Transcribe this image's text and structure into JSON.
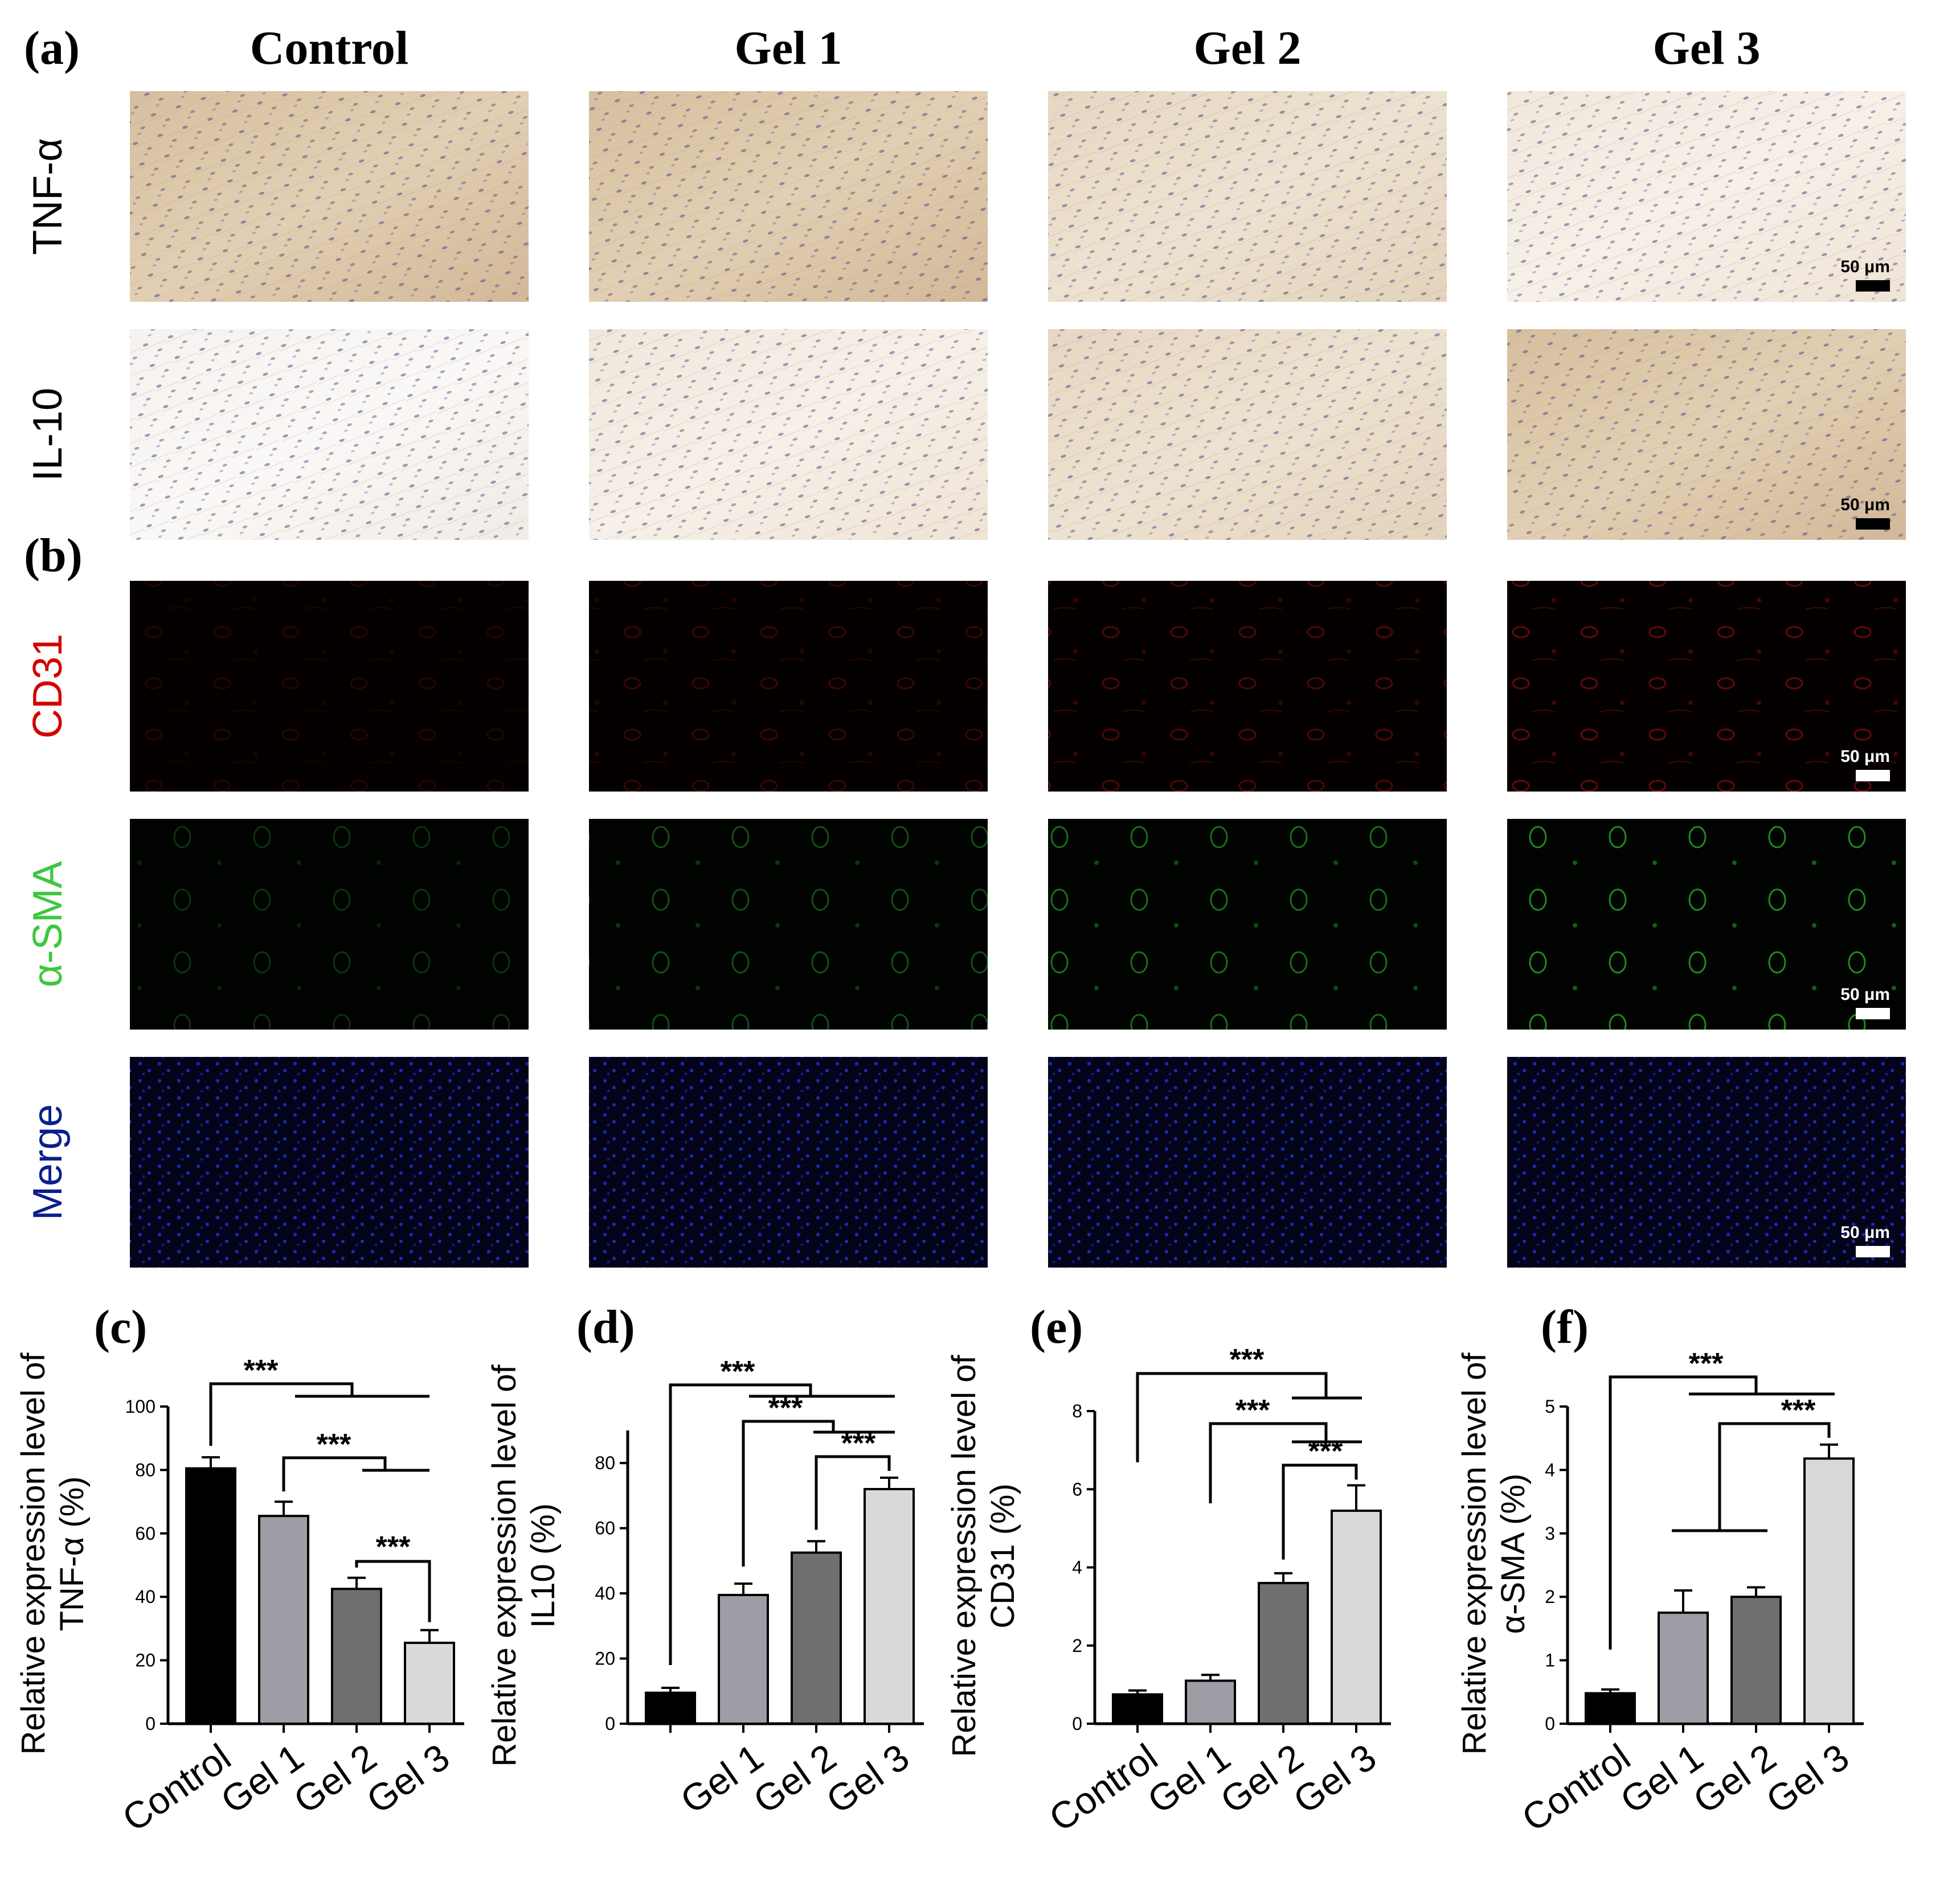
{
  "figure": {
    "panel_a": "(a)",
    "panel_b": "(b)",
    "columns": [
      "Control",
      "Gel 1",
      "Gel 2",
      "Gel 3"
    ],
    "rows": [
      {
        "label": "TNF-α",
        "color": "#000000",
        "tone": "ihc",
        "scale": "50 μm"
      },
      {
        "label": "IL-10",
        "color": "#000000",
        "tone": "ihc",
        "scale": "50 μm"
      },
      {
        "label": "CD31",
        "color": "#d40000",
        "tone": "red",
        "scale": "50 μm"
      },
      {
        "label": "α-SMA",
        "color": "#3cc83c",
        "tone": "green",
        "scale": "50 μm"
      },
      {
        "label": "Merge",
        "color": "#0a1f8c",
        "tone": "merge",
        "scale": "50 μm"
      }
    ]
  },
  "chart_data": [
    {
      "panel": "(c)",
      "type": "bar",
      "categories": [
        "Control",
        "Gel 1",
        "Gel 2",
        "Gel 3"
      ],
      "values": [
        80.5,
        65.5,
        42.5,
        25.5
      ],
      "errors": [
        3.5,
        4.5,
        3.5,
        4.0
      ],
      "colors": [
        "#000000",
        "#9d9da6",
        "#6f6f6f",
        "#d9d9d9"
      ],
      "ylabel_line1": "Relative expression level of",
      "ylabel_line2": "TNF-α (%)",
      "ylim": [
        0,
        100
      ],
      "yticks": [
        "0",
        "20",
        "40",
        "60",
        "80",
        "100"
      ],
      "significance": "***"
    },
    {
      "panel": "(d)",
      "type": "bar",
      "categories": [
        "",
        "Gel 1",
        "Gel 2",
        "Gel 3"
      ],
      "values": [
        9.5,
        39.5,
        52.5,
        72.0
      ],
      "errors": [
        1.5,
        3.5,
        3.5,
        3.5
      ],
      "colors": [
        "#000000",
        "#9d9da6",
        "#6f6f6f",
        "#d9d9d9"
      ],
      "ylabel_line1": "Relative expression level of",
      "ylabel_line2": "IL10 (%)",
      "ylim": [
        0,
        90
      ],
      "yticks": [
        "0",
        "20",
        "40",
        "60",
        "80"
      ],
      "significance": "***"
    },
    {
      "panel": "(e)",
      "type": "bar",
      "categories": [
        "Control",
        "Gel 1",
        "Gel 2",
        "Gel 3"
      ],
      "values": [
        0.75,
        1.1,
        3.6,
        5.45
      ],
      "errors": [
        0.1,
        0.15,
        0.25,
        0.65
      ],
      "colors": [
        "#000000",
        "#9d9da6",
        "#6f6f6f",
        "#d9d9d9"
      ],
      "ylabel_line1": "Relative expression level of",
      "ylabel_line2": "CD31 (%)",
      "ylim": [
        0,
        8
      ],
      "yticks": [
        "0",
        "2",
        "4",
        "6",
        "8"
      ],
      "significance": "***"
    },
    {
      "panel": "(f)",
      "type": "bar",
      "categories": [
        "Control",
        "Gel 1",
        "Gel 2",
        "Gel 3"
      ],
      "values": [
        0.48,
        1.75,
        2.0,
        4.18
      ],
      "errors": [
        0.06,
        0.35,
        0.15,
        0.22
      ],
      "colors": [
        "#000000",
        "#9d9da6",
        "#6f6f6f",
        "#d9d9d9"
      ],
      "ylabel_line1": "Relative expression level of",
      "ylabel_line2": "α-SMA (%)",
      "ylim": [
        0,
        5
      ],
      "yticks": [
        "0",
        "1",
        "2",
        "3",
        "4",
        "5"
      ],
      "significance": "***"
    }
  ]
}
